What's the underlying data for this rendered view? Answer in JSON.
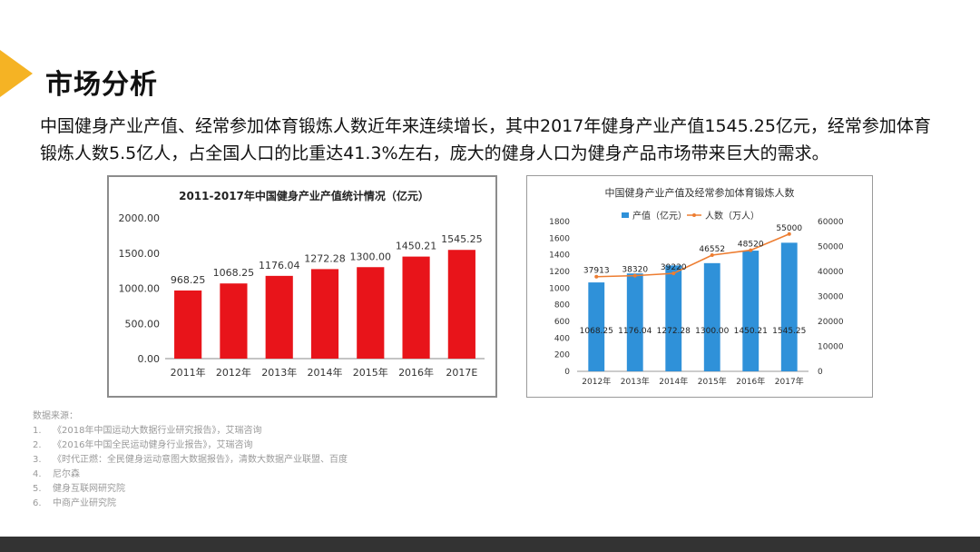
{
  "page": {
    "title": "市场分析",
    "intro": "中国健身产业产值、经常参加体育锻炼人数近年来连续增长，其中2017年健身产业产值1545.25亿元，经常参加体育锻炼人数5.5亿人，占全国人口的比重达41.3%左右，庞大的健身人口为健身产品市场带来巨大的需求。"
  },
  "colors": {
    "accent": "#f5b324",
    "bar_red": "#e8141a",
    "bar_blue": "#2f91d9",
    "line_orange": "#ed7d31"
  },
  "chart_data": [
    {
      "type": "bar",
      "title": "2011-2017年中国健身产业产值统计情况（亿元）",
      "categories": [
        "2011年",
        "2012年",
        "2013年",
        "2014年",
        "2015年",
        "2016年",
        "2017E"
      ],
      "values": [
        968.25,
        1068.25,
        1176.04,
        1272.28,
        1300.0,
        1450.21,
        1545.25
      ],
      "value_labels": [
        "968.25",
        "1068.25",
        "1176.04",
        "1272.28",
        "1300.00",
        "1450.21",
        "1545.25"
      ],
      "ylim": [
        0,
        2000
      ],
      "yticks": [
        "0.00",
        "500.00",
        "1000.00",
        "1500.00",
        "2000.00"
      ],
      "grid": false
    },
    {
      "type": "bar",
      "title": "中国健身产业产值及经常参加体育锻炼人数",
      "categories": [
        "2012年",
        "2013年",
        "2014年",
        "2015年",
        "2016年",
        "2017年"
      ],
      "series": [
        {
          "name": "产值（亿元）",
          "type": "bar",
          "axis": "left",
          "values": [
            1068.25,
            1176.04,
            1272.28,
            1300.0,
            1450.21,
            1545.25
          ],
          "labels": [
            "1068.25",
            "1176.04",
            "1272.28",
            "1300.00",
            "1450.21",
            "1545.25"
          ]
        },
        {
          "name": "人数（万人）",
          "type": "line",
          "axis": "right",
          "values": [
            37913,
            38320,
            39220,
            46552,
            48520,
            55000
          ],
          "labels": [
            "37913",
            "38320",
            "39220",
            "46552",
            "48520",
            "55000"
          ]
        }
      ],
      "ylim_left": [
        0,
        1800
      ],
      "yticks_left": [
        "0",
        "200",
        "400",
        "600",
        "800",
        "1000",
        "1200",
        "1400",
        "1600",
        "1800"
      ],
      "ylim_right": [
        0,
        60000
      ],
      "yticks_right": [
        "0",
        "10000",
        "20000",
        "30000",
        "40000",
        "50000",
        "60000"
      ],
      "legend": "top",
      "grid": false
    }
  ],
  "sources": {
    "heading": "数据来源：",
    "items": [
      {
        "n": "1.",
        "text": "《2018年中国运动大数据行业研究报告》，艾瑞咨询"
      },
      {
        "n": "2.",
        "text": "《2016年中国全民运动健身行业报告》，艾瑞咨询"
      },
      {
        "n": "3.",
        "text": "《时代正燃：全民健身运动意图大数据报告》，清数大数据产业联盟、百度"
      },
      {
        "n": "4.",
        "text": "尼尔森"
      },
      {
        "n": "5.",
        "text": "健身互联网研究院"
      },
      {
        "n": "6.",
        "text": "中商产业研究院"
      }
    ]
  }
}
